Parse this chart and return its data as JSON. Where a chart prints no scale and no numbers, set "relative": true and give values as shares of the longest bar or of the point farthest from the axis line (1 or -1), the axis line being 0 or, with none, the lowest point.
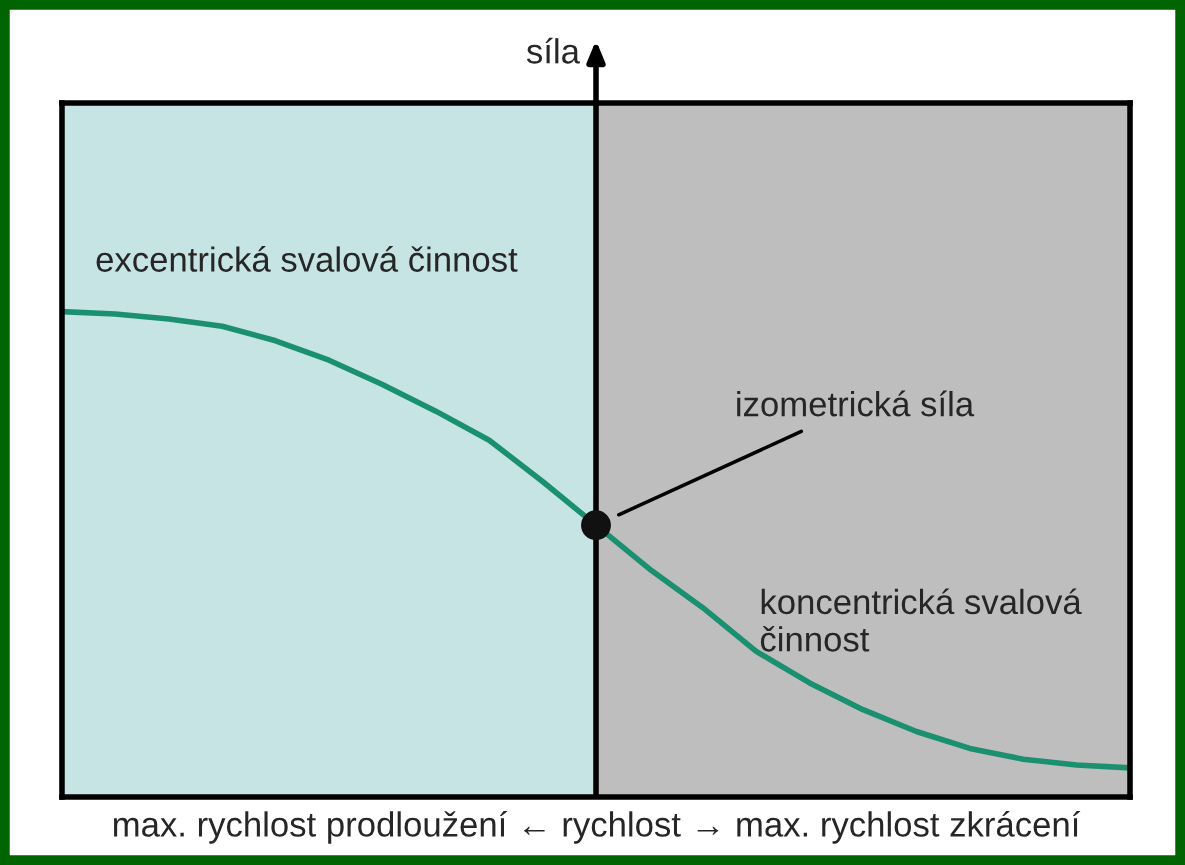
{
  "chart_data": {
    "type": "line",
    "relative": true,
    "xlabel": "max. rychlost prodloužení ← rychlost → max. rychlost zkrácení",
    "categories": [
      null,
      null,
      null,
      null,
      null,
      null,
      null,
      null,
      null,
      null,
      null,
      null,
      null,
      null,
      null,
      null,
      null,
      null,
      null,
      null,
      null
    ],
    "series": [
      {
        "color": "#1a9070",
        "values": [
          1,
          0.995,
          0.985,
          0.97,
          0.94,
          0.9,
          0.85,
          0.795,
          0.735,
          0.65,
          0.56,
          0.47,
          0.39,
          0.3,
          0.235,
          0.18,
          0.135,
          0.1,
          0.078,
          0.066,
          0.06
        ]
      }
    ],
    "tick_labels": false,
    "grid": false,
    "ref_lines": [
      {
        "axis": "x",
        "color": "#000000"
      }
    ],
    "annotations": [
      "síla",
      "excentrická svalová činnost",
      "izometrická síla",
      "koncentrická svalová činnost"
    ]
  }
}
